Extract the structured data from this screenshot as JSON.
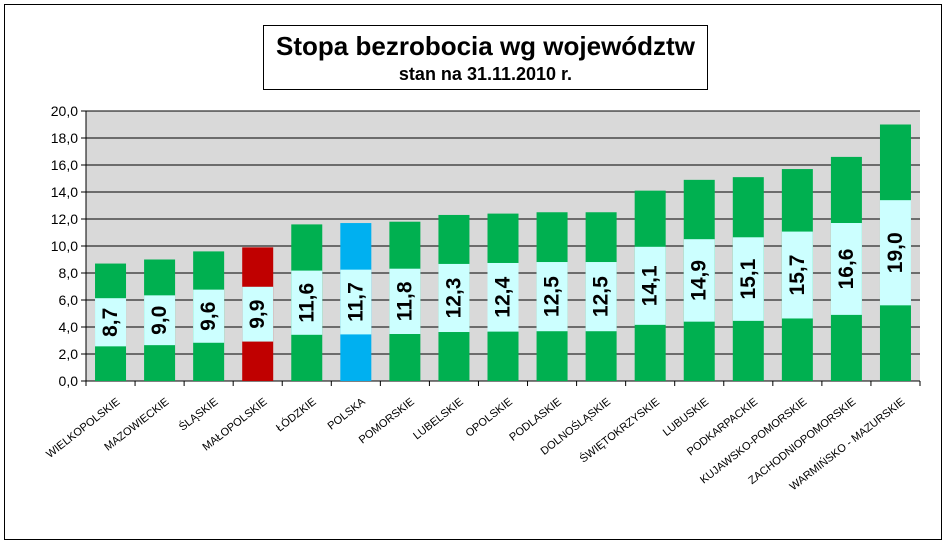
{
  "chart_data": {
    "type": "bar",
    "title": "Stopa bezrobocia wg województw",
    "subtitle": "stan na 31.11.2010 r.",
    "xlabel": "",
    "ylabel": "",
    "ylim": [
      0,
      20
    ],
    "yticks": [
      "0,0",
      "2,0",
      "4,0",
      "6,0",
      "8,0",
      "10,0",
      "12,0",
      "14,0",
      "16,0",
      "18,0",
      "20,0"
    ],
    "grid": true,
    "legend": "none",
    "categories": [
      "WIELKOPOLSKIE",
      "MAZOWIECKIE",
      "ŚLĄSKIE",
      "MAŁOPOLSKIE",
      "ŁÓDZKIE",
      "POLSKA",
      "POMORSKIE",
      "LUBELSKIE",
      "OPOLSKIE",
      "PODLASKIE",
      "DOLNOŚLĄSKIE",
      "ŚWIĘTOKRZYSKIE",
      "LUBUSKIE",
      "PODKARPACKIE",
      "KUJAWSKO-POMORSKIE",
      "ZACHODNIOPOMORSKIE",
      "WARMIŃSKO - MAZURSKIE"
    ],
    "values": [
      8.7,
      9.0,
      9.6,
      9.9,
      11.6,
      11.7,
      11.8,
      12.3,
      12.4,
      12.5,
      12.5,
      14.1,
      14.9,
      15.1,
      15.7,
      16.6,
      19.0
    ],
    "value_labels": [
      "8,7",
      "9,0",
      "9,6",
      "9,9",
      "11,6",
      "11,7",
      "11,8",
      "12,3",
      "12,4",
      "12,5",
      "12,5",
      "14,1",
      "14,9",
      "15,1",
      "15,7",
      "16,6",
      "19,0"
    ],
    "colors": [
      "#00b050",
      "#00b050",
      "#00b050",
      "#c00000",
      "#00b050",
      "#00b0f0",
      "#00b050",
      "#00b050",
      "#00b050",
      "#00b050",
      "#00b050",
      "#00b050",
      "#00b050",
      "#00b050",
      "#00b050",
      "#00b050",
      "#00b050"
    ],
    "plot_background": "#d9d9d9",
    "label_box_color": "#ccffff"
  }
}
